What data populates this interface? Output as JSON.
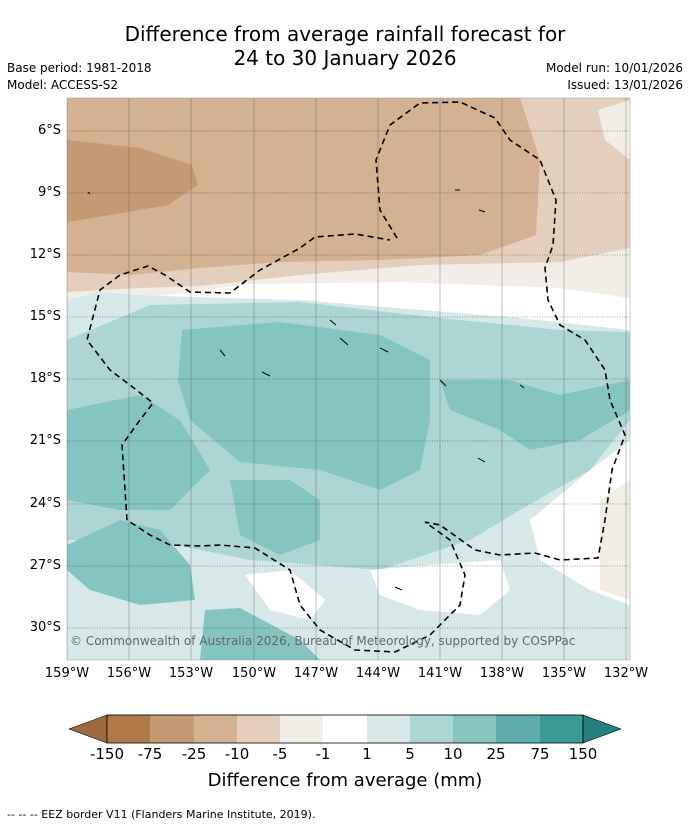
{
  "title": {
    "line1": "Difference from average rainfall forecast for",
    "line2": "24 to 30 January 2026"
  },
  "meta": {
    "base_period": "Base period: 1981-2018",
    "model": "Model: ACCESS-S2",
    "model_run": "Model run: 10/01/2026",
    "issued": "Issued: 13/01/2026"
  },
  "axes": {
    "latitudes": [
      "6°S",
      "9°S",
      "12°S",
      "15°S",
      "18°S",
      "21°S",
      "24°S",
      "27°S",
      "30°S"
    ],
    "longitudes": [
      "159°W",
      "156°W",
      "153°W",
      "150°W",
      "147°W",
      "144°W",
      "141°W",
      "138°W",
      "135°W",
      "132°W"
    ]
  },
  "colorbar": {
    "ticks": [
      "-150",
      "-75",
      "-25",
      "-10",
      "-5",
      "-1",
      "1",
      "5",
      "10",
      "25",
      "75",
      "150"
    ],
    "colors": [
      "#9c6a3e",
      "#b07a48",
      "#c49a72",
      "#d4b190",
      "#e4cfbd",
      "#f2ede7",
      "#ffffff",
      "#d6e9e8",
      "#acd6d4",
      "#84c4c1",
      "#5eafab",
      "#3a9a96",
      "#24807c"
    ],
    "label": "Difference from average (mm)"
  },
  "copyright": "© Commonwealth of Australia 2026, Bureau of Meteorology, supported by COSPPac",
  "footnote": "--  --  -- EEZ border V11 (Flanders Marine Institute, 2019)."
}
